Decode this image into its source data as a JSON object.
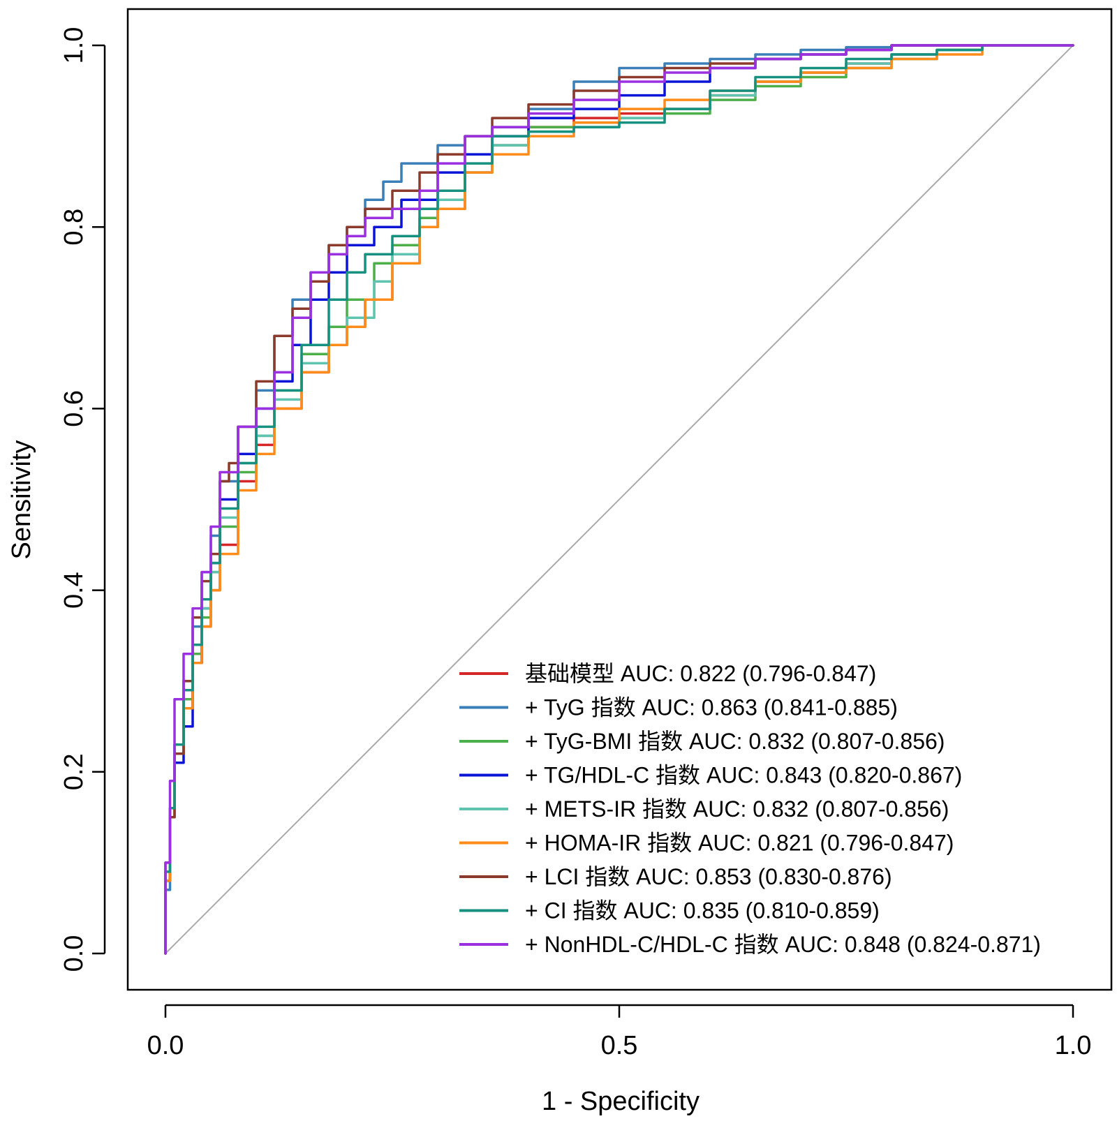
{
  "chart_data": {
    "type": "line",
    "title": "",
    "xlabel": "1 - Specificity",
    "ylabel": "Sensitivity",
    "xlim": [
      0,
      1
    ],
    "ylim": [
      0,
      1
    ],
    "x_ticks": [
      "0.0",
      "0.5",
      "1.0"
    ],
    "y_ticks": [
      "0.0",
      "0.2",
      "0.4",
      "0.6",
      "0.8",
      "1.0"
    ],
    "reference_line": "diagonal",
    "legend_position": "bottom-right",
    "series": [
      {
        "name": "基础模型",
        "legend": "基础模型 AUC: 0.822 (0.796-0.847)",
        "color": "#d62728",
        "x": [
          0,
          0.005,
          0.01,
          0.02,
          0.03,
          0.04,
          0.05,
          0.06,
          0.08,
          0.1,
          0.12,
          0.15,
          0.18,
          0.2,
          0.22,
          0.25,
          0.28,
          0.3,
          0.33,
          0.36,
          0.4,
          0.45,
          0.5,
          0.55,
          0.6,
          0.65,
          0.7,
          0.75,
          0.8,
          0.85,
          0.9,
          0.93,
          1.0
        ],
        "y": [
          0,
          0.08,
          0.15,
          0.22,
          0.27,
          0.32,
          0.36,
          0.4,
          0.45,
          0.52,
          0.56,
          0.6,
          0.64,
          0.67,
          0.69,
          0.72,
          0.76,
          0.8,
          0.82,
          0.86,
          0.89,
          0.91,
          0.92,
          0.925,
          0.93,
          0.945,
          0.96,
          0.97,
          0.98,
          0.99,
          0.995,
          1.0,
          1.0
        ]
      },
      {
        "name": "+ TyG 指数",
        "legend": "+ TyG 指数 AUC: 0.863 (0.841-0.885)",
        "color": "#3a7fb8",
        "x": [
          0,
          0.005,
          0.01,
          0.02,
          0.03,
          0.04,
          0.05,
          0.06,
          0.08,
          0.1,
          0.12,
          0.14,
          0.16,
          0.18,
          0.2,
          0.22,
          0.24,
          0.26,
          0.3,
          0.33,
          0.36,
          0.4,
          0.45,
          0.5,
          0.55,
          0.6,
          0.65,
          0.7,
          0.75,
          0.8,
          0.85,
          0.9,
          1.0
        ],
        "y": [
          0,
          0.07,
          0.15,
          0.23,
          0.3,
          0.36,
          0.42,
          0.46,
          0.52,
          0.58,
          0.62,
          0.68,
          0.72,
          0.75,
          0.78,
          0.8,
          0.83,
          0.85,
          0.87,
          0.89,
          0.9,
          0.91,
          0.93,
          0.96,
          0.975,
          0.98,
          0.985,
          0.99,
          0.995,
          0.998,
          1.0,
          1.0,
          1.0
        ]
      },
      {
        "name": "+ TyG-BMI 指数",
        "legend": "+ TyG-BMI 指数 AUC: 0.832 (0.807-0.856)",
        "color": "#4daf4a",
        "x": [
          0,
          0.005,
          0.01,
          0.02,
          0.03,
          0.04,
          0.05,
          0.06,
          0.08,
          0.1,
          0.12,
          0.15,
          0.18,
          0.2,
          0.23,
          0.25,
          0.28,
          0.3,
          0.33,
          0.36,
          0.4,
          0.45,
          0.5,
          0.55,
          0.6,
          0.65,
          0.7,
          0.75,
          0.8,
          0.85,
          0.9,
          0.93,
          1.0
        ],
        "y": [
          0,
          0.08,
          0.15,
          0.22,
          0.28,
          0.33,
          0.37,
          0.42,
          0.47,
          0.53,
          0.57,
          0.62,
          0.66,
          0.69,
          0.72,
          0.76,
          0.78,
          0.81,
          0.83,
          0.86,
          0.89,
          0.91,
          0.915,
          0.92,
          0.925,
          0.94,
          0.955,
          0.965,
          0.975,
          0.985,
          0.995,
          1.0,
          1.0
        ]
      },
      {
        "name": "+ TG/HDL-C 指数",
        "legend": "+ TG/HDL-C 指数 AUC: 0.843 (0.820-0.867)",
        "color": "#0a14d6",
        "x": [
          0,
          0.005,
          0.01,
          0.02,
          0.03,
          0.04,
          0.05,
          0.06,
          0.08,
          0.1,
          0.12,
          0.14,
          0.16,
          0.18,
          0.2,
          0.23,
          0.26,
          0.3,
          0.33,
          0.36,
          0.4,
          0.45,
          0.5,
          0.55,
          0.6,
          0.65,
          0.7,
          0.75,
          0.8,
          0.85,
          0.9,
          1.0
        ],
        "y": [
          0,
          0.08,
          0.16,
          0.21,
          0.25,
          0.32,
          0.38,
          0.43,
          0.5,
          0.55,
          0.6,
          0.63,
          0.67,
          0.72,
          0.75,
          0.78,
          0.8,
          0.83,
          0.86,
          0.88,
          0.9,
          0.92,
          0.93,
          0.945,
          0.96,
          0.975,
          0.985,
          0.99,
          0.995,
          1.0,
          1.0,
          1.0
        ]
      },
      {
        "name": "+ METS-IR 指数",
        "legend": "+ METS-IR 指数 AUC: 0.832 (0.807-0.856)",
        "color": "#5ec4b0",
        "x": [
          0,
          0.005,
          0.01,
          0.02,
          0.03,
          0.04,
          0.05,
          0.06,
          0.08,
          0.1,
          0.12,
          0.15,
          0.18,
          0.2,
          0.23,
          0.25,
          0.28,
          0.3,
          0.33,
          0.36,
          0.4,
          0.45,
          0.5,
          0.55,
          0.6,
          0.65,
          0.7,
          0.75,
          0.8,
          0.85,
          0.9,
          0.93,
          1.0
        ],
        "y": [
          0,
          0.09,
          0.16,
          0.23,
          0.29,
          0.34,
          0.38,
          0.42,
          0.48,
          0.54,
          0.57,
          0.61,
          0.65,
          0.67,
          0.7,
          0.74,
          0.77,
          0.8,
          0.83,
          0.86,
          0.89,
          0.905,
          0.91,
          0.92,
          0.93,
          0.945,
          0.96,
          0.97,
          0.98,
          0.99,
          0.995,
          1.0,
          1.0
        ]
      },
      {
        "name": "+ HOMA-IR 指数",
        "legend": "+ HOMA-IR 指数 AUC: 0.821 (0.796-0.847)",
        "color": "#ff8c1a",
        "x": [
          0,
          0.005,
          0.01,
          0.02,
          0.03,
          0.04,
          0.05,
          0.06,
          0.08,
          0.1,
          0.12,
          0.15,
          0.18,
          0.2,
          0.22,
          0.25,
          0.28,
          0.3,
          0.33,
          0.36,
          0.4,
          0.45,
          0.5,
          0.55,
          0.6,
          0.65,
          0.7,
          0.75,
          0.8,
          0.85,
          0.9,
          0.93,
          1.0
        ],
        "y": [
          0,
          0.08,
          0.15,
          0.22,
          0.27,
          0.32,
          0.36,
          0.4,
          0.44,
          0.51,
          0.55,
          0.6,
          0.64,
          0.67,
          0.69,
          0.72,
          0.76,
          0.8,
          0.82,
          0.86,
          0.88,
          0.9,
          0.915,
          0.93,
          0.94,
          0.95,
          0.96,
          0.97,
          0.975,
          0.985,
          0.99,
          1.0,
          1.0
        ]
      },
      {
        "name": "+ LCI 指数",
        "legend": "+ LCI 指数 AUC: 0.853 (0.830-0.876)",
        "color": "#8b3a2b",
        "x": [
          0,
          0.005,
          0.01,
          0.02,
          0.03,
          0.04,
          0.05,
          0.06,
          0.07,
          0.08,
          0.1,
          0.12,
          0.14,
          0.16,
          0.18,
          0.2,
          0.22,
          0.25,
          0.28,
          0.3,
          0.33,
          0.36,
          0.4,
          0.45,
          0.5,
          0.55,
          0.6,
          0.65,
          0.7,
          0.75,
          0.8,
          0.85,
          0.9,
          1.0
        ],
        "y": [
          0,
          0.1,
          0.15,
          0.22,
          0.3,
          0.37,
          0.41,
          0.44,
          0.52,
          0.54,
          0.58,
          0.63,
          0.68,
          0.71,
          0.74,
          0.78,
          0.8,
          0.82,
          0.84,
          0.86,
          0.88,
          0.9,
          0.92,
          0.935,
          0.95,
          0.965,
          0.975,
          0.98,
          0.985,
          0.99,
          0.995,
          1.0,
          1.0,
          1.0
        ]
      },
      {
        "name": "+ CI 指数",
        "legend": "+ CI 指数 AUC: 0.835 (0.810-0.859)",
        "color": "#16917f",
        "x": [
          0,
          0.005,
          0.01,
          0.02,
          0.03,
          0.04,
          0.05,
          0.06,
          0.08,
          0.1,
          0.12,
          0.15,
          0.18,
          0.2,
          0.22,
          0.25,
          0.28,
          0.3,
          0.33,
          0.36,
          0.4,
          0.45,
          0.5,
          0.55,
          0.6,
          0.65,
          0.7,
          0.75,
          0.8,
          0.85,
          0.9,
          0.93,
          1.0
        ],
        "y": [
          0,
          0.09,
          0.16,
          0.23,
          0.29,
          0.34,
          0.39,
          0.43,
          0.49,
          0.54,
          0.58,
          0.62,
          0.67,
          0.72,
          0.75,
          0.77,
          0.79,
          0.82,
          0.84,
          0.87,
          0.9,
          0.905,
          0.91,
          0.915,
          0.93,
          0.95,
          0.965,
          0.975,
          0.985,
          0.99,
          0.995,
          1.0,
          1.0
        ]
      },
      {
        "name": "+ NonHDL-C/HDL-C 指数",
        "legend": "+ NonHDL-C/HDL-C 指数 AUC: 0.848 (0.824-0.871)",
        "color": "#9b30e0",
        "x": [
          0,
          0.005,
          0.01,
          0.02,
          0.03,
          0.04,
          0.05,
          0.06,
          0.08,
          0.1,
          0.12,
          0.14,
          0.16,
          0.18,
          0.2,
          0.22,
          0.25,
          0.28,
          0.3,
          0.33,
          0.36,
          0.4,
          0.45,
          0.5,
          0.55,
          0.6,
          0.65,
          0.7,
          0.75,
          0.8,
          0.85,
          0.9,
          1.0
        ],
        "y": [
          0,
          0.1,
          0.19,
          0.28,
          0.33,
          0.38,
          0.42,
          0.47,
          0.53,
          0.58,
          0.6,
          0.64,
          0.7,
          0.75,
          0.77,
          0.79,
          0.81,
          0.82,
          0.84,
          0.87,
          0.9,
          0.91,
          0.925,
          0.94,
          0.96,
          0.97,
          0.975,
          0.985,
          0.99,
          0.995,
          1.0,
          1.0,
          1.0
        ]
      }
    ]
  }
}
